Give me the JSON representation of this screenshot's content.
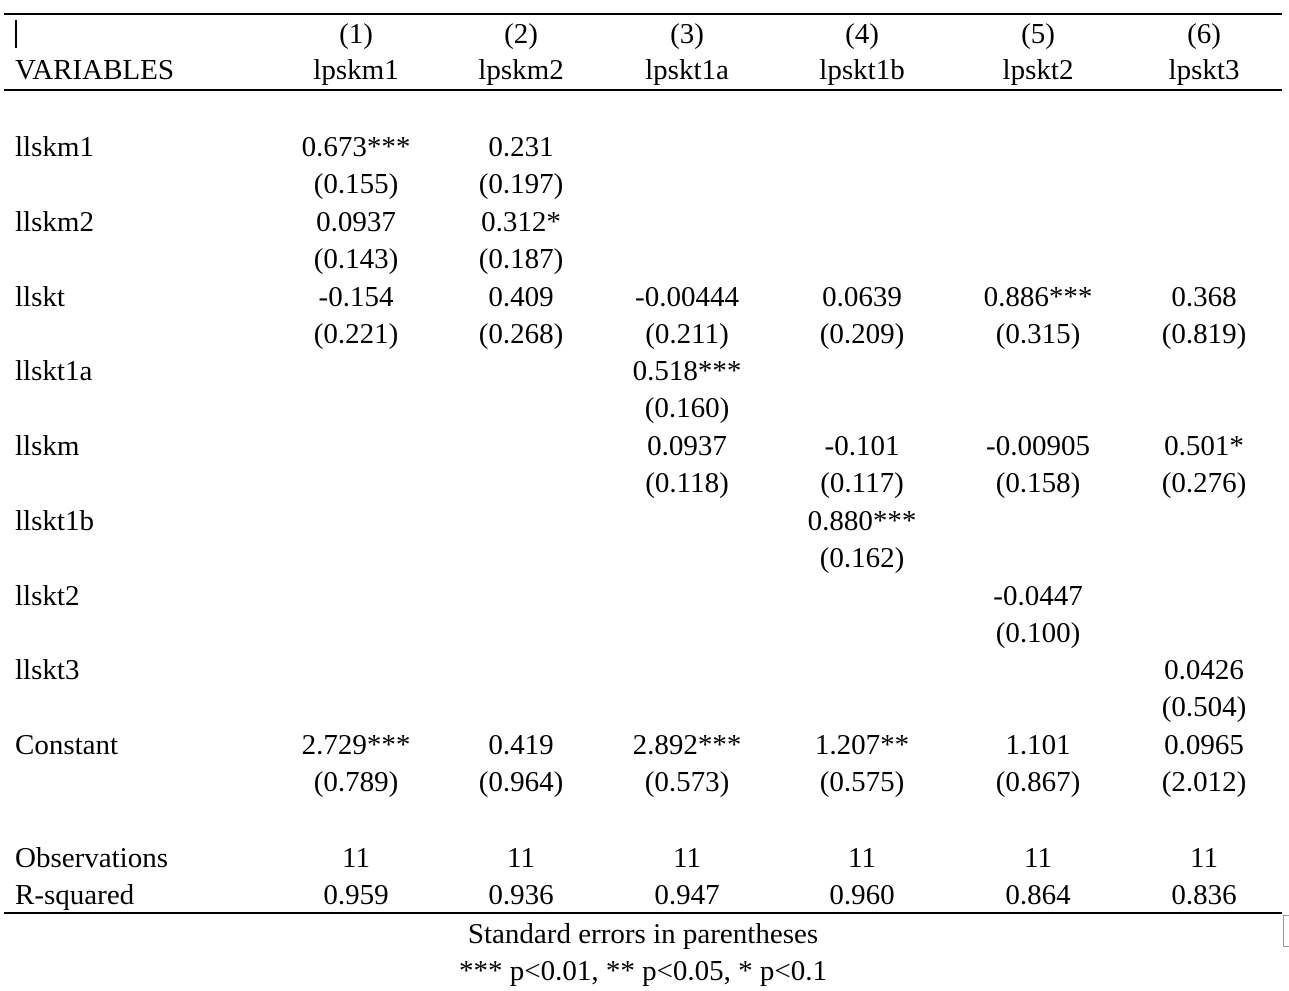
{
  "table": {
    "header": {
      "variables_label": "VARIABLES",
      "columns": [
        {
          "num": "(1)",
          "dep": "lpskm1"
        },
        {
          "num": "(2)",
          "dep": "lpskm2"
        },
        {
          "num": "(3)",
          "dep": "lpskt1a"
        },
        {
          "num": "(4)",
          "dep": "lpskt1b"
        },
        {
          "num": "(5)",
          "dep": "lpskt2"
        },
        {
          "num": "(6)",
          "dep": "lpskt3"
        }
      ]
    },
    "rows": [
      {
        "name": "llskm1",
        "coef": [
          "0.673***",
          "0.231",
          "",
          "",
          "",
          ""
        ],
        "se": [
          "(0.155)",
          "(0.197)",
          "",
          "",
          "",
          ""
        ]
      },
      {
        "name": "llskm2",
        "coef": [
          "0.0937",
          "0.312*",
          "",
          "",
          "",
          ""
        ],
        "se": [
          "(0.143)",
          "(0.187)",
          "",
          "",
          "",
          ""
        ]
      },
      {
        "name": "llskt",
        "coef": [
          "-0.154",
          "0.409",
          "-0.00444",
          "0.0639",
          "0.886***",
          "0.368"
        ],
        "se": [
          "(0.221)",
          "(0.268)",
          "(0.211)",
          "(0.209)",
          "(0.315)",
          "(0.819)"
        ]
      },
      {
        "name": "llskt1a",
        "coef": [
          "",
          "",
          "0.518***",
          "",
          "",
          ""
        ],
        "se": [
          "",
          "",
          "(0.160)",
          "",
          "",
          ""
        ]
      },
      {
        "name": "llskm",
        "coef": [
          "",
          "",
          "0.0937",
          "-0.101",
          "-0.00905",
          "0.501*"
        ],
        "se": [
          "",
          "",
          "(0.118)",
          "(0.117)",
          "(0.158)",
          "(0.276)"
        ]
      },
      {
        "name": "llskt1b",
        "coef": [
          "",
          "",
          "",
          "0.880***",
          "",
          ""
        ],
        "se": [
          "",
          "",
          "",
          "(0.162)",
          "",
          ""
        ]
      },
      {
        "name": "llskt2",
        "coef": [
          "",
          "",
          "",
          "",
          "-0.0447",
          ""
        ],
        "se": [
          "",
          "",
          "",
          "",
          "(0.100)",
          ""
        ]
      },
      {
        "name": "llskt3",
        "coef": [
          "",
          "",
          "",
          "",
          "",
          "0.0426"
        ],
        "se": [
          "",
          "",
          "",
          "",
          "",
          "(0.504)"
        ]
      },
      {
        "name": "Constant",
        "coef": [
          "2.729***",
          "0.419",
          "2.892***",
          "1.207**",
          "1.101",
          "0.0965"
        ],
        "se": [
          "(0.789)",
          "(0.964)",
          "(0.573)",
          "(0.575)",
          "(0.867)",
          "(2.012)"
        ]
      }
    ],
    "stats": [
      {
        "name": "Observations",
        "values": [
          "11",
          "11",
          "11",
          "11",
          "11",
          "11"
        ]
      },
      {
        "name": "R-squared",
        "values": [
          "0.959",
          "0.936",
          "0.947",
          "0.960",
          "0.864",
          "0.836"
        ]
      }
    ],
    "notes": [
      "Standard errors in parentheses",
      "*** p<0.01, ** p<0.05, * p<0.1"
    ]
  }
}
